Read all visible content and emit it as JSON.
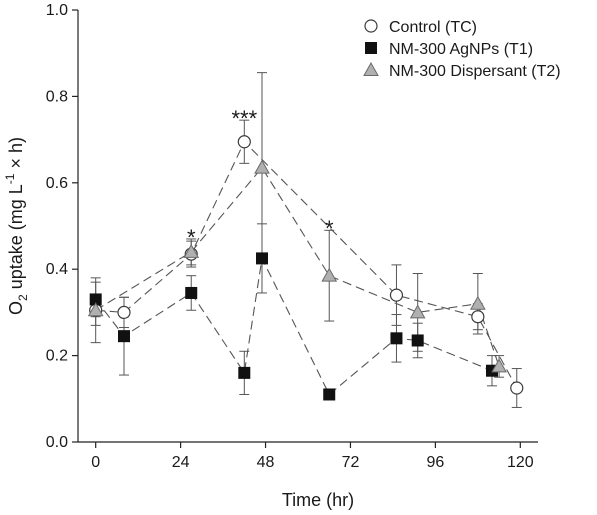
{
  "chart_data": {
    "type": "scatter",
    "title": "",
    "xlabel": "Time (hr)",
    "ylabel_parts": {
      "o": "O",
      "sub": "2",
      "mid": " uptake (mg L",
      "sup": "-1",
      "end": " × h)"
    },
    "xlim": [
      -5,
      125
    ],
    "ylim": [
      0,
      1.0
    ],
    "x_ticks": [
      0,
      24,
      48,
      72,
      96,
      120
    ],
    "y_ticks": [
      0.0,
      0.2,
      0.4,
      0.6,
      0.8,
      1.0
    ],
    "y_tick_labels": [
      "0.0",
      "0.2",
      "0.4",
      "0.6",
      "0.8",
      "1.0"
    ],
    "grid": false,
    "legend_position": "top-right",
    "series": [
      {
        "name": "Control (TC)",
        "marker": "circle",
        "fill": "#ffffff",
        "stroke": "#3a3a3a",
        "x": [
          0,
          8,
          27,
          42,
          85,
          108,
          119
        ],
        "y": [
          0.305,
          0.3,
          0.435,
          0.695,
          0.34,
          0.29,
          0.125
        ],
        "err": [
          0.035,
          0.035,
          0.03,
          0.05,
          0.07,
          0.03,
          0.045
        ]
      },
      {
        "name": "NM-300 AgNPs (T1)",
        "marker": "square",
        "fill": "#111111",
        "stroke": "#111111",
        "x": [
          0,
          8,
          27,
          42,
          47,
          66,
          85,
          91,
          112
        ],
        "y": [
          0.33,
          0.245,
          0.345,
          0.16,
          0.425,
          0.11,
          0.24,
          0.235,
          0.165
        ],
        "err": [
          0.04,
          0.09,
          0.04,
          0.05,
          0.08,
          0.0,
          0.055,
          0.04,
          0.035
        ]
      },
      {
        "name": "NM-300 Dispersant (T2)",
        "marker": "triangle",
        "fill": "#b0b0b0",
        "stroke": "#6a6a6a",
        "x": [
          0,
          27,
          47,
          66,
          91,
          108,
          114
        ],
        "y": [
          0.305,
          0.44,
          0.635,
          0.385,
          0.3,
          0.32,
          0.175
        ],
        "err": [
          0.075,
          0.03,
          0.22,
          0.105,
          0.09,
          0.07,
          0.025
        ]
      }
    ],
    "annotations": [
      {
        "text": "*",
        "x": 27,
        "y": 0.475
      },
      {
        "text": "***",
        "x": 42,
        "y": 0.75
      },
      {
        "text": "*",
        "x": 66,
        "y": 0.495
      }
    ]
  }
}
